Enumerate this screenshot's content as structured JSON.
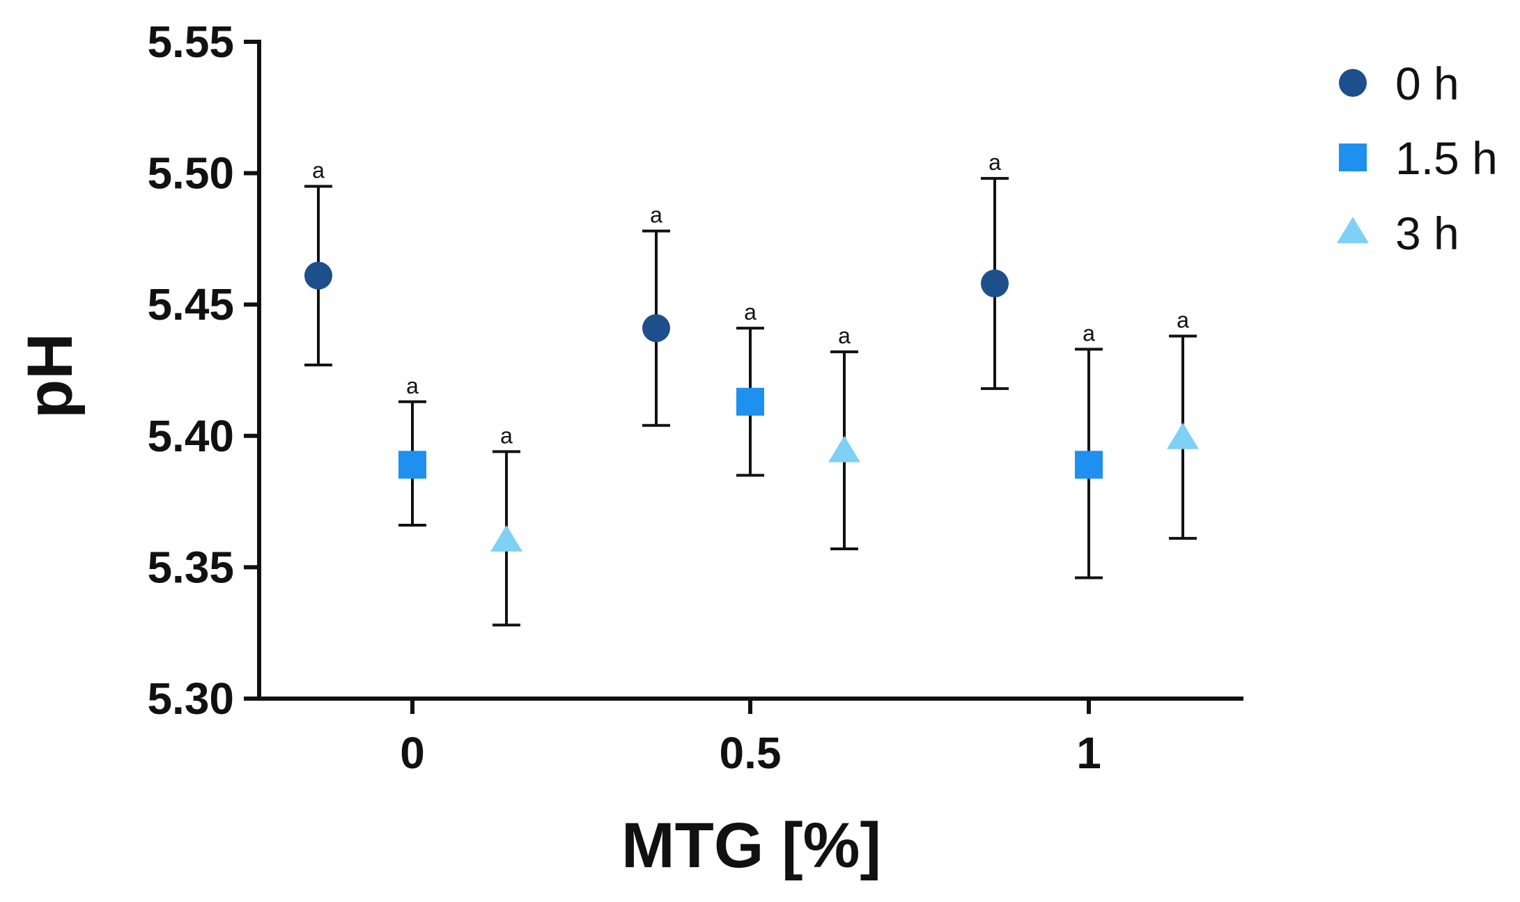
{
  "chart_data": {
    "type": "scatter",
    "title": "",
    "xlabel": "MTG [%]",
    "ylabel": "pH",
    "categories": [
      "0",
      "0.5",
      "1"
    ],
    "ylim": [
      5.3,
      5.55
    ],
    "yticks": [
      5.3,
      5.35,
      5.4,
      5.45,
      5.5,
      5.55
    ],
    "ytick_labels": [
      "5.30",
      "5.35",
      "5.40",
      "5.45",
      "5.50",
      "5.55"
    ],
    "grid": false,
    "legend_position": "top-right",
    "series": [
      {
        "name": "0 h",
        "marker": "circle",
        "color": "#1c4f8c",
        "values": [
          5.461,
          5.441,
          5.458
        ],
        "error_low": [
          5.427,
          5.404,
          5.418
        ],
        "error_high": [
          5.495,
          5.478,
          5.498
        ],
        "labels": [
          "a",
          "a",
          "a"
        ]
      },
      {
        "name": "1.5 h",
        "marker": "square",
        "color": "#1e90f0",
        "values": [
          5.389,
          5.413,
          5.389
        ],
        "error_low": [
          5.366,
          5.385,
          5.346
        ],
        "error_high": [
          5.413,
          5.441,
          5.433
        ],
        "labels": [
          "a",
          "a",
          "a"
        ]
      },
      {
        "name": "3 h",
        "marker": "triangle",
        "color": "#7fd0f5",
        "values": [
          5.36,
          5.394,
          5.399
        ],
        "error_low": [
          5.328,
          5.357,
          5.361
        ],
        "error_high": [
          5.394,
          5.432,
          5.438
        ],
        "labels": [
          "a",
          "a",
          "a"
        ]
      }
    ]
  }
}
